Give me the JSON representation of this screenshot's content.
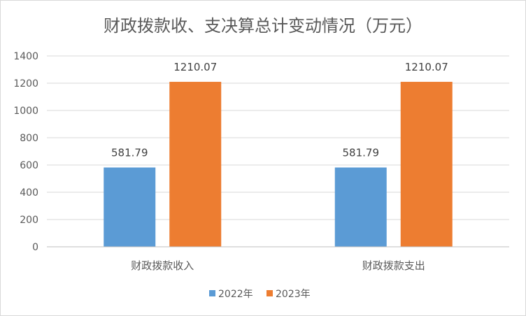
{
  "chart_data": {
    "type": "bar",
    "title": "财政拨款收、支决算总计变动情况（万元）",
    "categories": [
      "财政拨款收入",
      "财政拨款支出"
    ],
    "series": [
      {
        "name": "2022年",
        "values": [
          581.79,
          581.79
        ],
        "labels": [
          "581.79",
          "581.79"
        ],
        "color": "#5b9bd5"
      },
      {
        "name": "2023年",
        "values": [
          1210.07,
          1210.07
        ],
        "labels": [
          "1210.07",
          "1210.07"
        ],
        "color": "#ed7d31"
      }
    ],
    "ylim": [
      0,
      1400
    ],
    "yticks": [
      "0",
      "200",
      "400",
      "600",
      "800",
      "1000",
      "1200",
      "1400"
    ],
    "grid": true,
    "legend": "bottom",
    "xlabel": "",
    "ylabel": ""
  }
}
